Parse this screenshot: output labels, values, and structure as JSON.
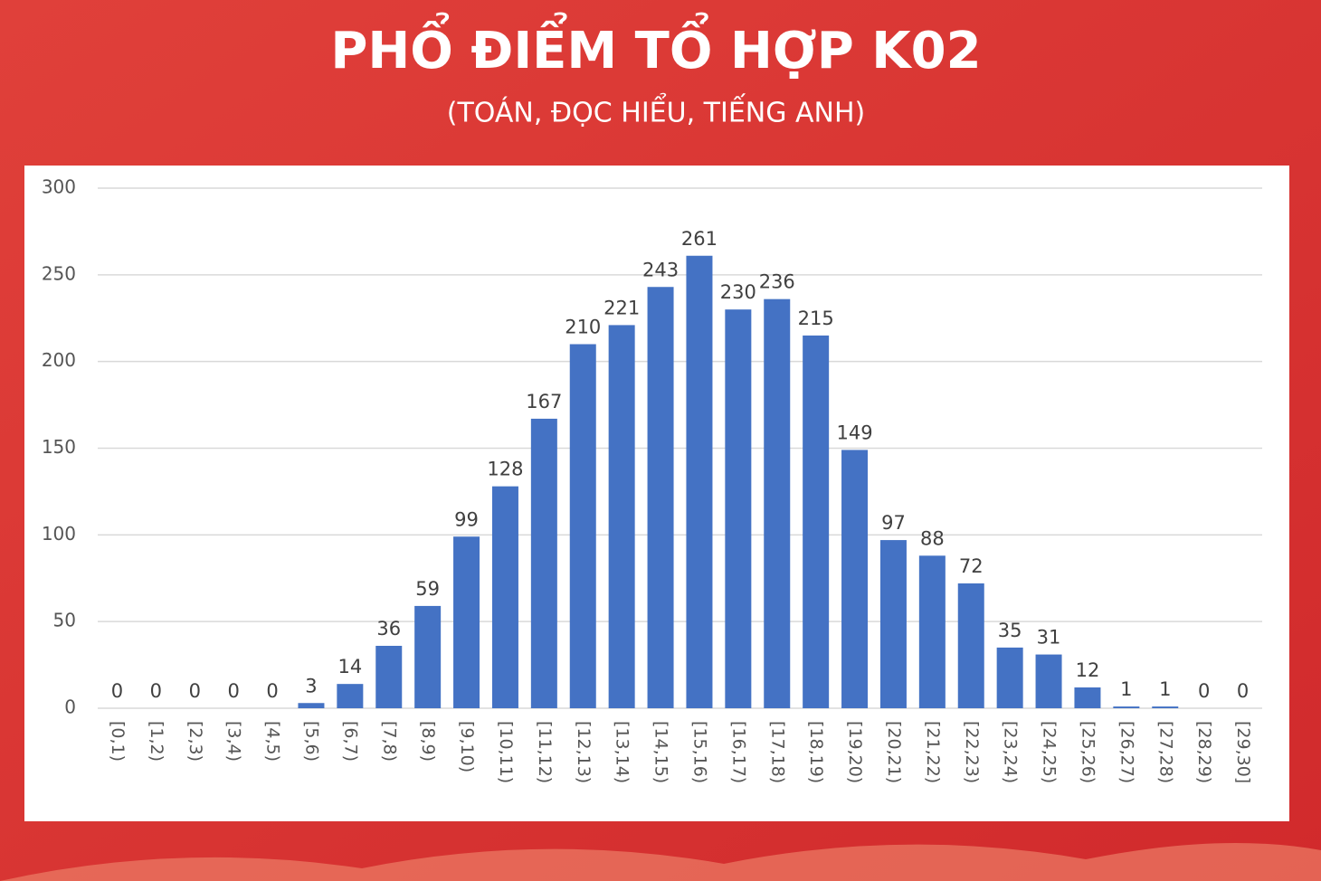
{
  "chart_data": {
    "type": "bar",
    "title": "PHỔ ĐIỂM TỔ HỢP K02",
    "subtitle": "(TOÁN, ĐỌC HIỂU, TIẾNG ANH)",
    "categories": [
      "[0,1)",
      "[1,2)",
      "[2,3)",
      "[3,4)",
      "[4,5)",
      "[5,6)",
      "[6,7)",
      "[7,8)",
      "[8,9)",
      "[9,10)",
      "[10,11)",
      "[11,12)",
      "[12,13)",
      "[13,14)",
      "[14,15)",
      "[15,16)",
      "[16,17)",
      "[17,18)",
      "[18,19)",
      "[19,20)",
      "[20,21)",
      "[21,22)",
      "[22,23)",
      "[23,24)",
      "[24,25)",
      "[25,26)",
      "[26,27)",
      "[27,28)",
      "[28,29)",
      "[29,30]"
    ],
    "values": [
      0,
      0,
      0,
      0,
      0,
      3,
      14,
      36,
      59,
      99,
      128,
      167,
      210,
      221,
      243,
      261,
      230,
      236,
      215,
      149,
      97,
      88,
      72,
      35,
      31,
      12,
      1,
      1,
      0,
      0
    ],
    "color": "#4472c4",
    "ylim": [
      0,
      300
    ],
    "yticks": [
      0,
      50,
      100,
      150,
      200,
      250,
      300
    ],
    "grid": true
  }
}
